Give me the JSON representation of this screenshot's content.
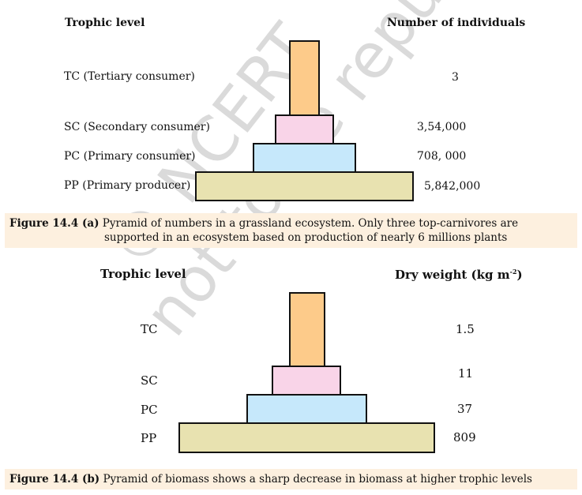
{
  "figure_a": {
    "header_left": "Trophic level",
    "header_right": "Number of individuals",
    "levels": [
      {
        "label": "TC (Tertiary consumer)",
        "value": "3"
      },
      {
        "label": "SC (Secondary consumer)",
        "value": "3,54,000"
      },
      {
        "label": "PC (Primary consumer)",
        "value": "708, 000"
      },
      {
        "label": "PP (Primary producer)",
        "value": "5,842,000"
      }
    ],
    "caption_label": "Figure 14.4 (a)",
    "caption_text": "Pyramid of numbers in a grassland ecosystem. Only three top-carnivores are supported in an ecosystem based on production of nearly 6 millions plants"
  },
  "figure_b": {
    "header_left": "Trophic level",
    "header_right": "Dry weight (kg m",
    "header_right_sup": "-2",
    "header_right_end": ")",
    "levels": [
      {
        "label": "TC",
        "value": "1.5"
      },
      {
        "label": "SC",
        "value": "11"
      },
      {
        "label": "PC",
        "value": "37"
      },
      {
        "label": "PP",
        "value": "809"
      }
    ],
    "caption_label": "Figure 14.4 (b)",
    "caption_text": "Pyramid of biomass shows a sharp decrease in biomass at higher trophic levels"
  },
  "colors": {
    "TC": "#fdcb8a",
    "SC": "#f9d4e8",
    "PC": "#c6e8fb",
    "PP": "#e8e2b0",
    "caption_bg": "#fdf0df"
  },
  "watermark": {
    "line1": "© NCERT",
    "line2": "not to be republished"
  }
}
